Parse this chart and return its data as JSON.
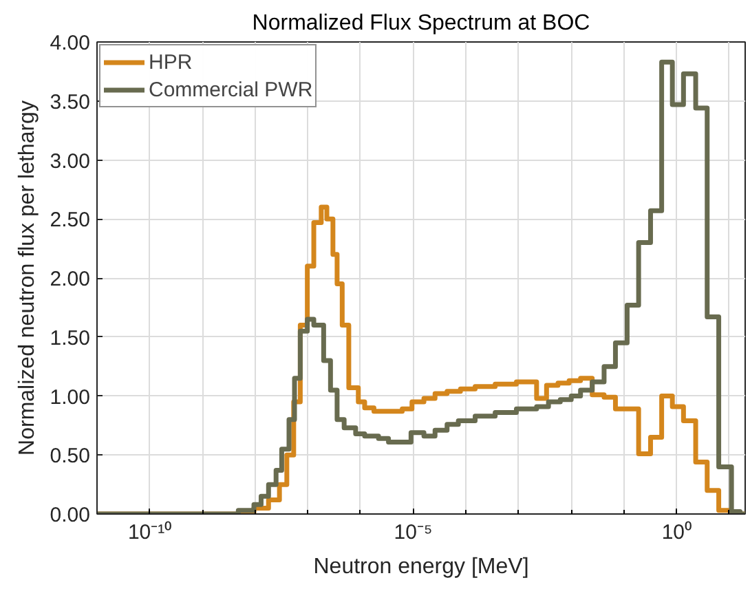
{
  "chart_data": {
    "type": "step",
    "title": "Normalized Flux Spectrum at BOC",
    "xlabel": "Neutron energy [MeV]",
    "ylabel": "Normalized neutron flux per lethargy",
    "log": "x",
    "grid": true,
    "legend": "top left",
    "line_style": "solid",
    "marker": "none",
    "xlim": [
      1e-11,
      20
    ],
    "ylim": [
      0,
      4
    ],
    "xticks": [
      {
        "value": 1e-10,
        "label": "10⁻¹⁰"
      },
      {
        "value": 1e-05,
        "label": "10⁻⁵"
      },
      {
        "value": 1,
        "label": "10⁰"
      }
    ],
    "yticks": [
      {
        "value": 0,
        "label": "0.00"
      },
      {
        "value": 0.5,
        "label": "0.50"
      },
      {
        "value": 1,
        "label": "1.00"
      },
      {
        "value": 1.5,
        "label": "1.50"
      },
      {
        "value": 2,
        "label": "2.00"
      },
      {
        "value": 2.5,
        "label": "2.50"
      },
      {
        "value": 3,
        "label": "3.00"
      },
      {
        "value": 3.5,
        "label": "3.50"
      },
      {
        "value": 4,
        "label": "4.00"
      }
    ],
    "series": [
      {
        "name": "HPR",
        "color": "#d4861c",
        "x": [
          1e-11,
          9.5e-09,
          1.8e-08,
          2.9e-08,
          4e-08,
          5.4e-08,
          7.2e-08,
          9.8e-08,
          1.3e-07,
          1.8e-07,
          2.3e-07,
          3e-07,
          3.6e-07,
          4.5e-07,
          6e-07,
          9.1e-07,
          1.2e-06,
          1.8e-06,
          6.2e-06,
          9.5e-06,
          1.6e-05,
          2.6e-05,
          4.4e-05,
          7.9e-05,
          0.00015,
          0.00036,
          0.00091,
          0.0022,
          0.0034,
          0.0056,
          0.0091,
          0.015,
          0.025,
          0.042,
          0.069,
          0.19,
          0.32,
          0.52,
          0.83,
          1.35,
          2.3,
          3.8,
          6.3,
          11,
          20
        ],
        "values": [
          0,
          0.05,
          0.12,
          0.25,
          0.5,
          0.95,
          1.6,
          2.1,
          2.47,
          2.6,
          2.5,
          2.2,
          1.95,
          1.6,
          1.07,
          0.95,
          0.9,
          0.87,
          0.89,
          0.95,
          0.98,
          1.02,
          1.04,
          1.06,
          1.08,
          1.1,
          1.12,
          0.98,
          1.09,
          1.11,
          1.13,
          1.15,
          1.01,
          0.99,
          0.89,
          0.51,
          0.65,
          1.0,
          0.91,
          0.79,
          0.44,
          0.2,
          0.03,
          0,
          0
        ]
      },
      {
        "name": "Commercial PWR",
        "color": "#686b4f",
        "x": [
          1e-11,
          4.8e-09,
          9.5e-09,
          1.3e-08,
          1.8e-08,
          2.5e-08,
          3.2e-08,
          4.4e-08,
          5.6e-08,
          7.2e-08,
          9.8e-08,
          1.3e-07,
          2e-07,
          2.7e-07,
          3.6e-07,
          4.9e-07,
          8.1e-07,
          1.2e-06,
          2.2e-06,
          3.4e-06,
          9.1e-06,
          1.6e-05,
          2.6e-05,
          4.4e-05,
          7.2e-05,
          0.00015,
          0.00036,
          0.00091,
          0.0022,
          0.0037,
          0.0062,
          0.01,
          0.015,
          0.025,
          0.042,
          0.069,
          0.115,
          0.19,
          0.32,
          0.52,
          0.83,
          1.35,
          2.3,
          3.8,
          6.3,
          11,
          16,
          20
        ],
        "values": [
          0,
          0.03,
          0.08,
          0.15,
          0.25,
          0.37,
          0.55,
          0.8,
          1.15,
          1.55,
          1.65,
          1.6,
          1.3,
          1.05,
          0.8,
          0.73,
          0.68,
          0.66,
          0.64,
          0.61,
          0.69,
          0.66,
          0.71,
          0.76,
          0.79,
          0.83,
          0.86,
          0.89,
          0.91,
          0.95,
          0.97,
          1.0,
          1.05,
          1.12,
          1.25,
          1.45,
          1.77,
          2.3,
          2.57,
          3.83,
          3.47,
          3.73,
          3.44,
          1.67,
          0.4,
          0.02,
          0,
          0
        ]
      }
    ]
  }
}
